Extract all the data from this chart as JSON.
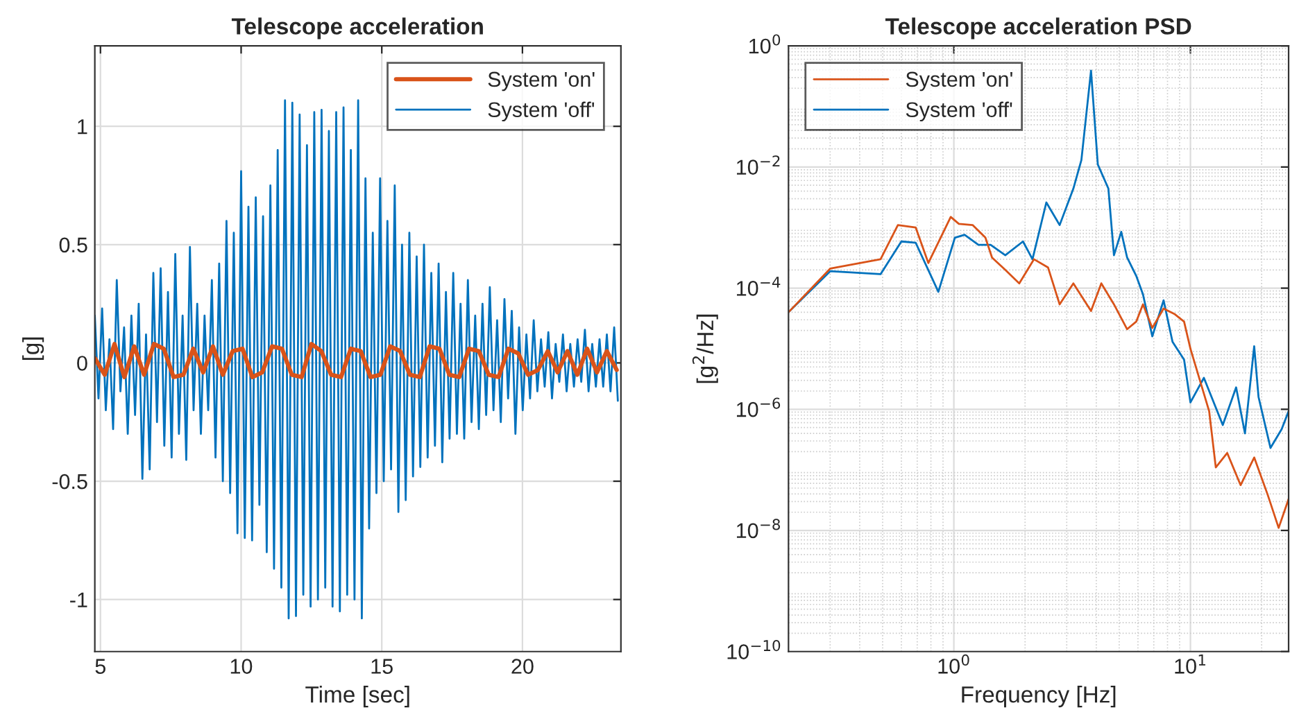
{
  "chart_data": [
    {
      "type": "line",
      "title": "Telescope acceleration",
      "xlabel": "Time [sec]",
      "ylabel": "[g]",
      "xlim": [
        4.8,
        23.5
      ],
      "ylim": [
        -1.22,
        1.34
      ],
      "xticks": [
        5,
        10,
        15,
        20
      ],
      "yticks": [
        {
          "value": -1,
          "label": "-1"
        },
        {
          "value": -0.5,
          "label": "-0.5"
        },
        0,
        0.5,
        1
      ],
      "grid": true,
      "legend": "top right",
      "series": [
        {
          "name": "System 'on'",
          "color": "#d95319",
          "x": [
            4.8,
            5.15,
            5.5,
            5.85,
            6.2,
            6.55,
            6.9,
            7.25,
            7.6,
            7.95,
            8.3,
            8.65,
            9.0,
            9.35,
            9.7,
            10.05,
            10.4,
            10.75,
            11.1,
            11.45,
            11.8,
            12.15,
            12.5,
            12.85,
            13.2,
            13.55,
            13.9,
            14.25,
            14.6,
            14.95,
            15.3,
            15.65,
            16.0,
            16.35,
            16.7,
            17.05,
            17.4,
            17.75,
            18.1,
            18.45,
            18.8,
            19.15,
            19.5,
            19.85,
            20.2,
            20.55,
            20.9,
            21.25,
            21.6,
            21.95,
            22.3,
            22.65,
            23.0,
            23.35
          ],
          "values": [
            0.02,
            -0.05,
            0.08,
            -0.06,
            0.07,
            -0.05,
            0.08,
            0.06,
            -0.06,
            -0.05,
            0.06,
            -0.04,
            0.07,
            -0.05,
            0.05,
            0.06,
            -0.06,
            -0.04,
            0.07,
            0.06,
            -0.05,
            -0.06,
            0.08,
            0.05,
            -0.05,
            -0.06,
            0.06,
            0.05,
            -0.06,
            -0.05,
            0.07,
            0.05,
            -0.05,
            -0.06,
            0.07,
            0.06,
            -0.05,
            -0.06,
            0.06,
            0.05,
            -0.05,
            -0.06,
            0.06,
            0.04,
            -0.05,
            -0.03,
            0.05,
            -0.04,
            0.05,
            -0.05,
            0.06,
            -0.04,
            0.05,
            -0.03
          ]
        },
        {
          "name": "System 'off'",
          "color": "#0072bd",
          "x": [
            4.8,
            4.93,
            5.06,
            5.19,
            5.32,
            5.45,
            5.58,
            5.71,
            5.84,
            5.97,
            6.1,
            6.23,
            6.36,
            6.49,
            6.62,
            6.75,
            6.88,
            7.01,
            7.14,
            7.27,
            7.4,
            7.53,
            7.66,
            7.79,
            7.92,
            8.05,
            8.18,
            8.31,
            8.44,
            8.57,
            8.7,
            8.83,
            8.96,
            9.09,
            9.22,
            9.35,
            9.48,
            9.61,
            9.74,
            9.87,
            10.0,
            10.13,
            10.26,
            10.39,
            10.52,
            10.65,
            10.78,
            10.91,
            11.04,
            11.17,
            11.3,
            11.43,
            11.56,
            11.69,
            11.82,
            11.95,
            12.08,
            12.21,
            12.34,
            12.47,
            12.6,
            12.73,
            12.86,
            12.99,
            13.12,
            13.25,
            13.38,
            13.51,
            13.64,
            13.77,
            13.9,
            14.03,
            14.16,
            14.29,
            14.42,
            14.55,
            14.68,
            14.81,
            14.94,
            15.07,
            15.2,
            15.33,
            15.46,
            15.59,
            15.72,
            15.85,
            15.98,
            16.11,
            16.24,
            16.37,
            16.5,
            16.63,
            16.76,
            16.89,
            17.02,
            17.15,
            17.28,
            17.41,
            17.54,
            17.67,
            17.8,
            17.93,
            18.06,
            18.19,
            18.32,
            18.45,
            18.58,
            18.71,
            18.84,
            18.97,
            19.1,
            19.23,
            19.36,
            19.49,
            19.62,
            19.75,
            19.88,
            20.01,
            20.14,
            20.27,
            20.4,
            20.53,
            20.66,
            20.79,
            20.92,
            21.05,
            21.18,
            21.31,
            21.44,
            21.57,
            21.7,
            21.83,
            21.96,
            22.09,
            22.22,
            22.35,
            22.48,
            22.61,
            22.74,
            22.87,
            23.0,
            23.13,
            23.26,
            23.39
          ],
          "values": [
            0.2,
            -0.15,
            0.23,
            -0.2,
            0.1,
            -0.28,
            0.35,
            -0.12,
            0.15,
            -0.3,
            0.2,
            -0.22,
            0.25,
            -0.49,
            0.12,
            -0.45,
            0.38,
            -0.25,
            0.4,
            -0.35,
            0.3,
            -0.4,
            0.46,
            -0.3,
            0.2,
            -0.41,
            0.49,
            -0.2,
            0.25,
            -0.3,
            0.2,
            -0.2,
            0.35,
            -0.4,
            0.42,
            -0.5,
            0.6,
            -0.55,
            0.55,
            -0.72,
            0.81,
            -0.74,
            0.66,
            -0.75,
            0.7,
            -0.6,
            0.62,
            -0.8,
            0.75,
            -0.87,
            0.9,
            -0.95,
            1.11,
            -1.08,
            1.1,
            -1.07,
            1.05,
            -0.98,
            0.92,
            -1.03,
            1.06,
            -1.0,
            1.07,
            -0.95,
            0.98,
            -1.03,
            1.06,
            -1.05,
            1.08,
            -0.98,
            0.9,
            -1.0,
            1.11,
            -1.08,
            0.78,
            -0.7,
            0.55,
            -0.55,
            0.78,
            -0.5,
            0.6,
            -0.45,
            0.75,
            -0.63,
            0.5,
            -0.58,
            0.55,
            -0.48,
            0.45,
            -0.44,
            0.5,
            -0.4,
            0.38,
            -0.35,
            0.42,
            -0.42,
            0.3,
            -0.32,
            0.38,
            -0.3,
            0.25,
            -0.32,
            0.35,
            -0.25,
            0.2,
            -0.28,
            0.25,
            -0.22,
            0.32,
            -0.2,
            0.18,
            -0.25,
            0.27,
            -0.15,
            0.22,
            -0.3,
            0.15,
            -0.2,
            0.12,
            -0.15,
            0.18,
            -0.12,
            0.1,
            -0.1,
            0.13,
            -0.15,
            0.08,
            -0.08,
            0.12,
            -0.12,
            0.08,
            -0.1,
            0.1,
            -0.08,
            0.14,
            -0.12,
            0.08,
            -0.1,
            0.1,
            -0.1,
            0.12,
            -0.12,
            0.15,
            -0.16
          ]
        }
      ]
    },
    {
      "type": "line",
      "title": "Telescope acceleration PSD",
      "xlabel": "Frequency [Hz]",
      "ylabel": "[g$^{2}$/Hz]",
      "log": "xy",
      "xlim": [
        0.2,
        26
      ],
      "ylim": [
        1e-10,
        1
      ],
      "xticks": [
        {
          "value": 1,
          "label": "10$^{0}$"
        },
        {
          "value": 10,
          "label": "10$^{1}$"
        }
      ],
      "yticks": [
        {
          "value": 1e-10,
          "label": "10$^{−10}$"
        },
        {
          "value": 1e-08,
          "label": "10$^{−8}$"
        },
        {
          "value": 1e-06,
          "label": "10$^{−6}$"
        },
        {
          "value": 0.0001,
          "label": "10$^{−4}$"
        },
        {
          "value": 0.01,
          "label": "10$^{−2}$"
        },
        {
          "value": 1,
          "label": "10$^{0}$"
        }
      ],
      "grid": true,
      "legend": "top left",
      "series": [
        {
          "name": "System 'on'",
          "color": "#d95319",
          "x": [
            0.2,
            0.3,
            0.49,
            0.58,
            0.69,
            0.78,
            0.97,
            1.05,
            1.2,
            1.36,
            1.45,
            1.65,
            1.89,
            2.18,
            2.5,
            2.8,
            3.2,
            3.8,
            4.2,
            4.75,
            5.4,
            5.9,
            6.3,
            6.9,
            7.7,
            8.6,
            9.4,
            10,
            12,
            12.8,
            14.3,
            16.3,
            18.6,
            21.2,
            23.6,
            26
          ],
          "values": [
            4e-05,
            0.00021,
            0.0003,
            0.0011,
            0.001,
            0.00026,
            0.0015,
            0.00115,
            0.0011,
            0.00068,
            0.00032,
            0.0002,
            0.00012,
            0.0003,
            0.00022,
            5.4e-05,
            0.00012,
            4.2e-05,
            0.00012,
            5.4e-05,
            2.1e-05,
            2.8e-05,
            5.4e-05,
            2.2e-05,
            4.6e-05,
            3.7e-05,
            2.8e-05,
            1e-05,
            9.3e-07,
            1.1e-07,
            1.9e-07,
            5.6e-08,
            1.6e-07,
            3.9e-08,
            1.1e-08,
            3.3e-08
          ]
        },
        {
          "name": "System 'off'",
          "color": "#0072bd",
          "x": [
            0.2,
            0.3,
            0.49,
            0.6,
            0.69,
            0.86,
            1.01,
            1.11,
            1.27,
            1.43,
            1.65,
            1.96,
            2.15,
            2.46,
            2.8,
            3.2,
            3.46,
            3.8,
            4.06,
            4.5,
            4.75,
            5.1,
            5.4,
            5.9,
            6.3,
            6.9,
            7.7,
            8.4,
            9.4,
            10,
            11.4,
            13.7,
            15.6,
            17,
            18.6,
            19.4,
            21.8,
            24.3,
            26
          ],
          "values": [
            4e-05,
            0.00019,
            0.00017,
            0.00059,
            0.00056,
            8.7e-05,
            0.00068,
            0.00076,
            0.00052,
            0.00052,
            0.00035,
            0.00059,
            0.0003,
            0.0026,
            0.0011,
            0.0044,
            0.013,
            0.39,
            0.011,
            0.0044,
            0.00035,
            0.00085,
            0.00032,
            0.00016,
            7.9e-05,
            1.6e-05,
            6.3e-05,
            1.3e-05,
            6.6e-06,
            1.3e-06,
            3.3e-06,
            5.5e-07,
            2.3e-06,
            4e-07,
            1.1e-05,
            1.6e-06,
            2.3e-07,
            4.7e-07,
            9.3e-07
          ]
        }
      ]
    }
  ]
}
